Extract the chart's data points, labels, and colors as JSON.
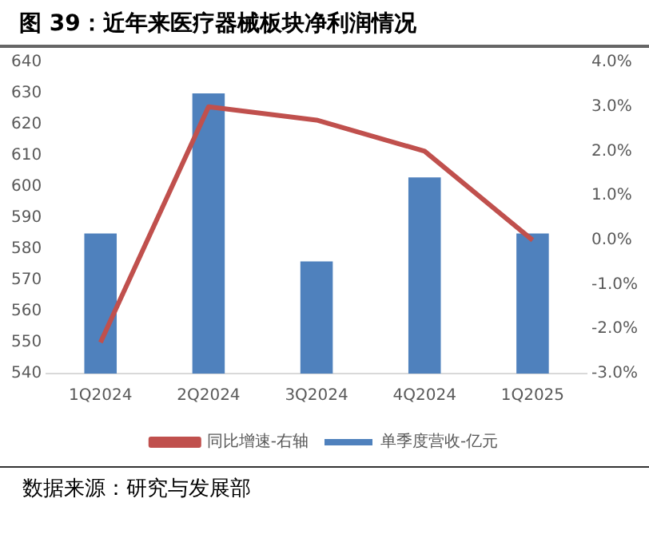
{
  "chart_data": {
    "type": "bar",
    "title": "图 39：近年来医疗器械板块净利润情况",
    "categories": [
      "1Q2024",
      "2Q2024",
      "3Q2024",
      "4Q2024",
      "1Q2025"
    ],
    "series": [
      {
        "name": "单季度营收-亿元",
        "color": "#4f81bd",
        "values": [
          585,
          630,
          576,
          603,
          585
        ]
      },
      {
        "name": "同比增速-右轴",
        "type": "line",
        "axis": "y2",
        "color": "#c0504d",
        "values": [
          -2.3,
          3.0,
          2.7,
          2.0,
          0.0
        ]
      }
    ],
    "ylim": [
      540,
      640
    ],
    "yticks": [
      540,
      550,
      560,
      570,
      580,
      590,
      600,
      610,
      620,
      630,
      640
    ],
    "y2lim": [
      -3,
      4
    ],
    "y2ticks": [
      {
        "value": -3,
        "label": "-3.0%"
      },
      {
        "value": -2,
        "label": "-2.0%"
      },
      {
        "value": -1,
        "label": "-1.0%"
      },
      {
        "value": 0,
        "label": "0.0%"
      },
      {
        "value": 1,
        "label": "1.0%"
      },
      {
        "value": 2,
        "label": "2.0%"
      },
      {
        "value": 3,
        "label": "3.0%"
      },
      {
        "value": 4,
        "label": "4.0%"
      }
    ],
    "grid": false,
    "legend": "bottom",
    "marker": "none",
    "annotations": [
      "数据来源：研究与发展部"
    ]
  }
}
